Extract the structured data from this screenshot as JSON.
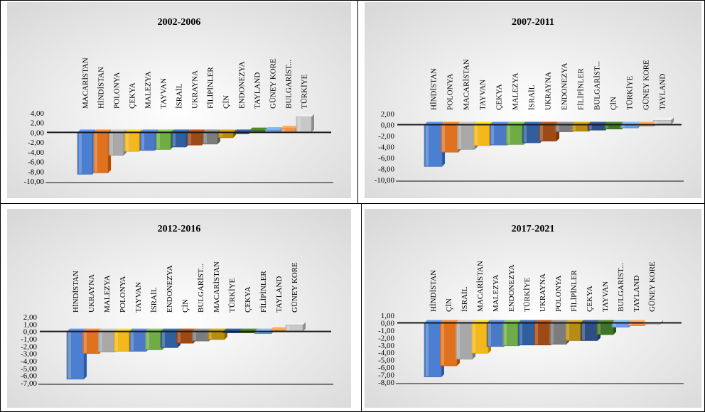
{
  "chart_data": [
    {
      "type": "bar",
      "title": "2002-2006",
      "categories": [
        "MACARİSTAN",
        "HİNDİSTAN",
        "POLONYA",
        "ÇEKYA",
        "MALEZYA",
        "TAYVAN",
        "İSRAİL",
        "UKRAYNA",
        "FİLİPİNLER",
        "ÇİN",
        "ENDONEZYA",
        "TAYLAND",
        "GÜNEY KORE",
        "BULGARİST...",
        "TÜRKİYE"
      ],
      "values": [
        -8.6,
        -8.3,
        -4.7,
        -3.9,
        -3.7,
        -3.5,
        -3.0,
        -2.6,
        -2.4,
        -1.1,
        -0.2,
        0.4,
        0.5,
        0.8,
        3.2
      ],
      "ylim": [
        -10,
        4
      ],
      "ytick_step": 2,
      "ytick_labels": [
        "4,00",
        "2,00",
        "0,00",
        "-2,00",
        "-4,00",
        "-6,00",
        "-8,00",
        "-10,00"
      ]
    },
    {
      "type": "bar",
      "title": "2007-2011",
      "categories": [
        "HİNDİSTAN",
        "POLONYA",
        "MACARİSTAN",
        "TAYVAN",
        "ÇEKYA",
        "MALEZYA",
        "İSRAİL",
        "UKRAYNA",
        "ENDONEZYA",
        "FİLİPİNLER",
        "BULGARİST...",
        "ÇİN",
        "TÜRKİYE",
        "GÜNEY KORE",
        "TAYLAND"
      ],
      "values": [
        -7.6,
        -5.0,
        -4.5,
        -3.8,
        -3.7,
        -3.6,
        -3.3,
        -3.0,
        -1.3,
        -1.2,
        -1.0,
        -0.8,
        -0.6,
        -0.2,
        0.8
      ],
      "ylim": [
        -10,
        2
      ],
      "ytick_step": 2,
      "ytick_labels": [
        "2,00",
        "0,00",
        "-2,00",
        "-4,00",
        "-6,00",
        "-8,00",
        "-10,00"
      ]
    },
    {
      "type": "bar",
      "title": "2012-2016",
      "categories": [
        "HİNDİSTAN",
        "UKRAYNA",
        "MALEZYA",
        "POLONYA",
        "TAYVAN",
        "İSRAİL",
        "ENDONEZYA",
        "ÇİN",
        "BULGARİST...",
        "MACARİSTAN",
        "TÜRKİYE",
        "ÇEKYA",
        "FİLİPİNLER",
        "TAYLAND",
        "GÜNEY KORE"
      ],
      "values": [
        -6.5,
        -3.0,
        -2.8,
        -2.7,
        -2.7,
        -2.5,
        -2.2,
        -1.6,
        -1.3,
        -1.1,
        -0.2,
        -0.2,
        -0.3,
        0.2,
        0.9
      ],
      "ylim": [
        -7,
        2
      ],
      "ytick_step": 1,
      "ytick_labels": [
        "2,00",
        "1,00",
        "0,00",
        "-1,00",
        "-2,00",
        "-3,00",
        "-4,00",
        "-5,00",
        "-6,00",
        "-7,00"
      ]
    },
    {
      "type": "bar",
      "title": "2017-2021",
      "categories": [
        "HİNDİSTAN",
        "ÇİN",
        "İSRAİL",
        "MACARİSTAN",
        "MALEZYA",
        "ENDONEZYA",
        "TÜRKİYE",
        "UKRAYNA",
        "POLONYA",
        "FİLİPİNLER",
        "ÇEKYA",
        "TAYVAN",
        "BULGARİST...",
        "TAYLAND",
        "GÜNEY KORE"
      ],
      "values": [
        -7.3,
        -5.8,
        -4.9,
        -4.1,
        -3.2,
        -3.1,
        -3.0,
        -3.0,
        -2.9,
        -2.4,
        -2.4,
        -1.6,
        -0.6,
        -0.4,
        -0.2
      ],
      "ylim": [
        -8,
        1
      ],
      "ytick_step": 1,
      "ytick_labels": [
        "1,00",
        "0,00",
        "-1,00",
        "-2,00",
        "-3,00",
        "-4,00",
        "-5,00",
        "-6,00",
        "-7,00",
        "-8,00"
      ]
    }
  ],
  "colors": {
    "series_palette": [
      "#4a7fd1",
      "#e0721f",
      "#a8a8a8",
      "#f2b81c",
      "#4b78c7",
      "#6fac46",
      "#2f5f9e",
      "#9e4a17",
      "#7c7c7c",
      "#b88c12",
      "#2d4f86",
      "#3f7527",
      "#6b9ee2",
      "#f0904b",
      "#c8c8c8"
    ],
    "panel_bg": "#f2f2f2",
    "zero_line": "#1a1a1a",
    "text": "#000000"
  }
}
